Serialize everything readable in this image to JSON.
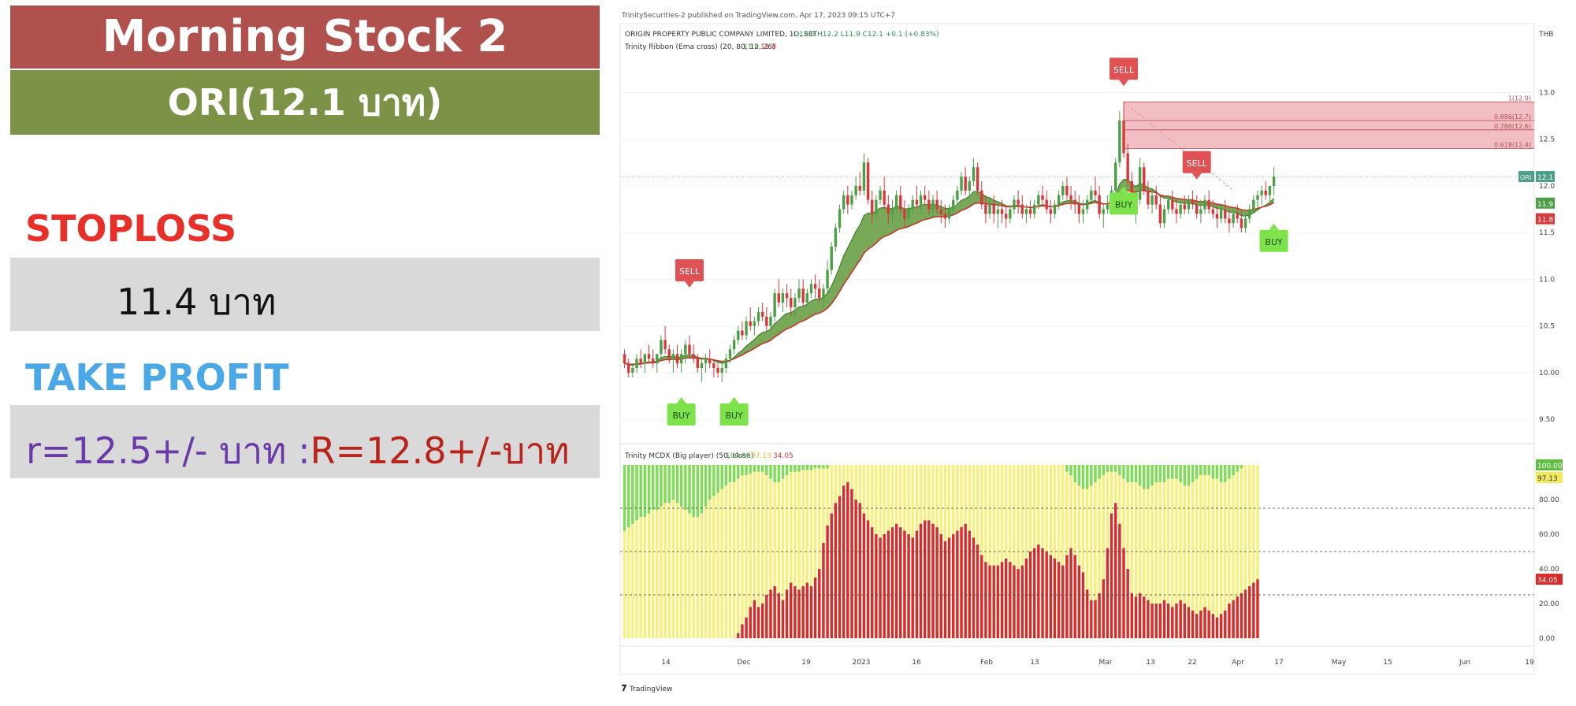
{
  "header": {
    "title": "Morning Stock 2",
    "ticker": "ORI(12.1 บาท)"
  },
  "stoploss": {
    "label": "STOPLOSS",
    "value": "11.4 บาท"
  },
  "take_profit": {
    "label": "TAKE PROFIT",
    "support": "r=12.5+/- บาท :",
    "resistance": "R=12.8+/-บาท"
  },
  "colors": {
    "title_bg": "#b0514d",
    "ticker_bg": "#7c9347",
    "stoploss": "#e8302a",
    "take_profit": "#4aa8e6",
    "support_text": "#6a3aa8",
    "resistance_text": "#b8241c",
    "bull": "#4c9e47",
    "bear": "#d9383a",
    "ribbon": "#5f9a3c",
    "buy_badge": "#7ee24a",
    "sell_badge": "#e05154"
  },
  "chart_data": {
    "type": "candlestick",
    "published": "TrinitySecurities-2 published on TradingView.com, Apr 17, 2023 09:15 UTC+7",
    "symbol_line": "ORIGIN PROPERTY PUBLIC COMPANY LIMITED, 1D, SET",
    "ohlc": "O12.0 H12.2 L11.9 C12.1 +0.1 (+0.83%)",
    "indicator_line": "Trinity Ribbon (Ema cross) (20, 80, 12, 26)",
    "indicator_values": [
      "11.9",
      "11.8"
    ],
    "currency": "THB",
    "price_ticks": [
      "13.0",
      "12.5",
      "12.0",
      "11.5",
      "11.0",
      "10.5",
      "10.00",
      "9.50"
    ],
    "ylim": [
      9.35,
      13.4
    ],
    "last_price_label": "ORI",
    "last_price": "12.1",
    "ema_fast_label": "11.9",
    "ema_slow_label": "11.8",
    "fib_levels": [
      {
        "label": "1(12.9)",
        "value": 12.9
      },
      {
        "label": "0.886(12.7)",
        "value": 12.7
      },
      {
        "label": "0.786(12.6)",
        "value": 12.6
      },
      {
        "label": "0.618(12.4)",
        "value": 12.4
      }
    ],
    "x_ticks": [
      "14",
      "Dec",
      "19",
      "2023",
      "16",
      "Feb",
      "13",
      "Mar",
      "13",
      "22",
      "Apr",
      "17",
      "May",
      "15",
      "Jun",
      "19"
    ],
    "signals": [
      {
        "type": "SELL",
        "index": 16
      },
      {
        "type": "BUY",
        "index": 14
      },
      {
        "type": "BUY",
        "index": 27
      },
      {
        "type": "SELL",
        "index": 123
      },
      {
        "type": "BUY",
        "index": 123
      },
      {
        "type": "SELL",
        "index": 141
      },
      {
        "type": "BUY",
        "index": 160
      }
    ],
    "candles": [
      [
        10.2,
        10.25,
        10.05,
        10.1
      ],
      [
        10.1,
        10.15,
        9.95,
        10.0
      ],
      [
        10.0,
        10.1,
        9.95,
        10.05
      ],
      [
        10.05,
        10.2,
        10.0,
        10.15
      ],
      [
        10.15,
        10.25,
        10.05,
        10.1
      ],
      [
        10.1,
        10.2,
        10.0,
        10.2
      ],
      [
        10.2,
        10.3,
        10.1,
        10.15
      ],
      [
        10.15,
        10.25,
        10.05,
        10.1
      ],
      [
        10.1,
        10.2,
        10.0,
        10.2
      ],
      [
        10.2,
        10.4,
        10.15,
        10.35
      ],
      [
        10.35,
        10.5,
        10.2,
        10.25
      ],
      [
        10.25,
        10.3,
        10.1,
        10.15
      ],
      [
        10.15,
        10.25,
        10.0,
        10.2
      ],
      [
        10.2,
        10.3,
        10.05,
        10.1
      ],
      [
        10.1,
        10.25,
        10.0,
        10.2
      ],
      [
        10.2,
        10.35,
        10.1,
        10.3
      ],
      [
        10.3,
        10.4,
        10.15,
        10.2
      ],
      [
        10.2,
        10.3,
        10.1,
        10.15
      ],
      [
        10.15,
        10.2,
        10.0,
        10.05
      ],
      [
        10.05,
        10.15,
        9.9,
        10.1
      ],
      [
        10.1,
        10.2,
        10.0,
        10.15
      ],
      [
        10.15,
        10.25,
        10.05,
        10.1
      ],
      [
        10.1,
        10.15,
        9.95,
        10.05
      ],
      [
        10.05,
        10.1,
        9.95,
        10.0
      ],
      [
        10.0,
        10.1,
        9.9,
        10.05
      ],
      [
        10.05,
        10.2,
        10.0,
        10.15
      ],
      [
        10.15,
        10.3,
        10.1,
        10.25
      ],
      [
        10.25,
        10.4,
        10.2,
        10.35
      ],
      [
        10.35,
        10.5,
        10.3,
        10.45
      ],
      [
        10.45,
        10.55,
        10.35,
        10.4
      ],
      [
        10.4,
        10.6,
        10.35,
        10.55
      ],
      [
        10.55,
        10.7,
        10.45,
        10.5
      ],
      [
        10.5,
        10.6,
        10.4,
        10.55
      ],
      [
        10.55,
        10.7,
        10.5,
        10.65
      ],
      [
        10.65,
        10.75,
        10.55,
        10.6
      ],
      [
        10.6,
        10.7,
        10.45,
        10.5
      ],
      [
        10.5,
        10.65,
        10.45,
        10.6
      ],
      [
        10.6,
        10.9,
        10.55,
        10.85
      ],
      [
        10.85,
        11.0,
        10.7,
        10.75
      ],
      [
        10.75,
        10.9,
        10.65,
        10.85
      ],
      [
        10.85,
        10.95,
        10.7,
        10.8
      ],
      [
        10.8,
        10.9,
        10.6,
        10.7
      ],
      [
        10.7,
        10.85,
        10.6,
        10.8
      ],
      [
        10.8,
        11.0,
        10.75,
        10.9
      ],
      [
        10.9,
        11.0,
        10.7,
        10.75
      ],
      [
        10.75,
        10.9,
        10.7,
        10.85
      ],
      [
        10.85,
        11.0,
        10.8,
        10.95
      ],
      [
        10.95,
        11.05,
        10.8,
        10.9
      ],
      [
        10.9,
        11.0,
        10.75,
        10.8
      ],
      [
        10.8,
        10.95,
        10.7,
        10.9
      ],
      [
        10.9,
        11.2,
        10.85,
        11.1
      ],
      [
        11.1,
        11.4,
        11.05,
        11.35
      ],
      [
        11.35,
        11.6,
        11.3,
        11.55
      ],
      [
        11.55,
        11.8,
        11.5,
        11.75
      ],
      [
        11.75,
        11.95,
        11.7,
        11.9
      ],
      [
        11.9,
        12.0,
        11.7,
        11.8
      ],
      [
        11.8,
        11.95,
        11.75,
        11.9
      ],
      [
        11.9,
        12.1,
        11.85,
        12.0
      ],
      [
        12.0,
        12.15,
        11.9,
        11.95
      ],
      [
        11.95,
        12.35,
        11.9,
        12.25
      ],
      [
        12.25,
        12.3,
        11.8,
        11.85
      ],
      [
        11.85,
        11.95,
        11.6,
        11.7
      ],
      [
        11.7,
        11.9,
        11.65,
        11.85
      ],
      [
        11.85,
        12.0,
        11.8,
        11.95
      ],
      [
        11.95,
        12.1,
        11.75,
        11.8
      ],
      [
        11.8,
        11.9,
        11.6,
        11.7
      ],
      [
        11.7,
        11.85,
        11.6,
        11.75
      ],
      [
        11.75,
        11.95,
        11.7,
        11.9
      ],
      [
        11.9,
        12.0,
        11.7,
        11.75
      ],
      [
        11.75,
        11.85,
        11.55,
        11.65
      ],
      [
        11.65,
        11.8,
        11.6,
        11.75
      ],
      [
        11.75,
        11.9,
        11.7,
        11.85
      ],
      [
        11.85,
        12.0,
        11.75,
        11.8
      ],
      [
        11.8,
        11.95,
        11.7,
        11.9
      ],
      [
        11.9,
        12.0,
        11.8,
        11.85
      ],
      [
        11.85,
        11.95,
        11.7,
        11.75
      ],
      [
        11.75,
        11.9,
        11.65,
        11.85
      ],
      [
        11.85,
        11.95,
        11.7,
        11.75
      ],
      [
        11.75,
        11.85,
        11.6,
        11.7
      ],
      [
        11.7,
        11.8,
        11.55,
        11.65
      ],
      [
        11.65,
        11.8,
        11.6,
        11.75
      ],
      [
        11.75,
        11.9,
        11.7,
        11.85
      ],
      [
        11.85,
        12.0,
        11.8,
        11.95
      ],
      [
        11.95,
        12.15,
        11.9,
        12.1
      ],
      [
        12.1,
        12.2,
        11.9,
        11.95
      ],
      [
        11.95,
        12.1,
        11.85,
        12.05
      ],
      [
        12.05,
        12.3,
        12.0,
        12.2
      ],
      [
        12.2,
        12.25,
        11.9,
        11.95
      ],
      [
        11.95,
        12.05,
        11.75,
        11.8
      ],
      [
        11.8,
        11.9,
        11.6,
        11.7
      ],
      [
        11.7,
        11.85,
        11.65,
        11.8
      ],
      [
        11.8,
        11.9,
        11.6,
        11.7
      ],
      [
        11.7,
        11.8,
        11.55,
        11.75
      ],
      [
        11.75,
        11.85,
        11.6,
        11.7
      ],
      [
        11.7,
        11.8,
        11.55,
        11.65
      ],
      [
        11.65,
        11.8,
        11.6,
        11.75
      ],
      [
        11.75,
        11.9,
        11.7,
        11.85
      ],
      [
        11.85,
        11.95,
        11.7,
        11.8
      ],
      [
        11.8,
        11.9,
        11.65,
        11.7
      ],
      [
        11.7,
        11.8,
        11.6,
        11.75
      ],
      [
        11.75,
        11.85,
        11.65,
        11.7
      ],
      [
        11.7,
        11.85,
        11.65,
        11.8
      ],
      [
        11.8,
        11.95,
        11.75,
        11.9
      ],
      [
        11.9,
        12.0,
        11.8,
        11.85
      ],
      [
        11.85,
        11.95,
        11.7,
        11.75
      ],
      [
        11.75,
        11.85,
        11.6,
        11.7
      ],
      [
        11.7,
        11.85,
        11.65,
        11.8
      ],
      [
        11.8,
        11.95,
        11.75,
        11.9
      ],
      [
        11.9,
        12.05,
        11.85,
        12.0
      ],
      [
        12.0,
        12.1,
        11.85,
        11.9
      ],
      [
        11.9,
        12.0,
        11.75,
        11.85
      ],
      [
        11.85,
        11.95,
        11.7,
        11.8
      ],
      [
        11.8,
        11.9,
        11.6,
        11.7
      ],
      [
        11.7,
        11.85,
        11.6,
        11.75
      ],
      [
        11.75,
        11.9,
        11.7,
        11.85
      ],
      [
        11.85,
        12.0,
        11.8,
        11.95
      ],
      [
        11.95,
        12.1,
        11.85,
        11.9
      ],
      [
        11.9,
        12.0,
        11.65,
        11.7
      ],
      [
        11.7,
        11.8,
        11.55,
        11.75
      ],
      [
        11.75,
        11.9,
        11.7,
        11.8
      ],
      [
        11.8,
        12.0,
        11.75,
        11.95
      ],
      [
        11.95,
        12.3,
        11.9,
        12.25
      ],
      [
        12.25,
        12.8,
        12.2,
        12.7
      ],
      [
        12.7,
        12.9,
        12.3,
        12.35
      ],
      [
        12.35,
        12.45,
        12.0,
        12.05
      ],
      [
        12.05,
        12.15,
        11.7,
        11.75
      ],
      [
        11.75,
        11.9,
        11.6,
        11.85
      ],
      [
        11.85,
        12.3,
        11.8,
        12.2
      ],
      [
        12.2,
        12.25,
        11.9,
        11.95
      ],
      [
        11.95,
        12.05,
        11.75,
        11.8
      ],
      [
        11.8,
        11.95,
        11.7,
        11.9
      ],
      [
        11.9,
        12.0,
        11.75,
        11.8
      ],
      [
        11.8,
        11.9,
        11.55,
        11.6
      ],
      [
        11.6,
        11.8,
        11.55,
        11.75
      ],
      [
        11.75,
        11.9,
        11.7,
        11.85
      ],
      [
        11.85,
        11.95,
        11.7,
        11.75
      ],
      [
        11.75,
        11.85,
        11.6,
        11.7
      ],
      [
        11.7,
        11.85,
        11.65,
        11.8
      ],
      [
        11.8,
        11.9,
        11.7,
        11.75
      ],
      [
        11.75,
        11.9,
        11.7,
        11.85
      ],
      [
        11.85,
        11.95,
        11.75,
        11.8
      ],
      [
        11.8,
        11.9,
        11.65,
        11.7
      ],
      [
        11.7,
        11.85,
        11.6,
        11.75
      ],
      [
        11.75,
        11.9,
        11.7,
        11.85
      ],
      [
        11.85,
        11.95,
        11.7,
        11.75
      ],
      [
        11.75,
        11.85,
        11.65,
        11.7
      ],
      [
        11.7,
        11.8,
        11.55,
        11.65
      ],
      [
        11.65,
        11.8,
        11.6,
        11.75
      ],
      [
        11.75,
        11.85,
        11.6,
        11.65
      ],
      [
        11.65,
        11.75,
        11.5,
        11.6
      ],
      [
        11.6,
        11.75,
        11.55,
        11.7
      ],
      [
        11.7,
        11.8,
        11.6,
        11.65
      ],
      [
        11.65,
        11.75,
        11.5,
        11.55
      ],
      [
        11.55,
        11.7,
        11.5,
        11.65
      ],
      [
        11.65,
        11.8,
        11.6,
        11.75
      ],
      [
        11.75,
        11.9,
        11.7,
        11.85
      ],
      [
        11.85,
        11.95,
        11.75,
        11.9
      ],
      [
        11.9,
        12.0,
        11.8,
        11.95
      ],
      [
        11.95,
        12.05,
        11.85,
        11.9
      ],
      [
        11.9,
        12.0,
        11.8,
        12.0
      ],
      [
        12.0,
        12.2,
        11.9,
        12.1
      ]
    ],
    "mcdx": {
      "label": "Trinity MCDX (Big player) (50, close)",
      "values": [
        "100.00",
        "97.13",
        "34.05"
      ],
      "axis_ticks": [
        "100.00",
        "80.00",
        "60.00",
        "40.00",
        "20.00",
        "0.00"
      ],
      "ylim": [
        0,
        100
      ],
      "dashed_levels": [
        75,
        50,
        25
      ],
      "red": [
        0,
        0,
        0,
        0,
        0,
        0,
        0,
        0,
        0,
        0,
        0,
        0,
        0,
        0,
        0,
        0,
        0,
        0,
        0,
        0,
        0,
        0,
        0,
        0,
        0,
        0,
        0,
        0,
        3,
        8,
        12,
        18,
        22,
        18,
        20,
        25,
        28,
        30,
        26,
        22,
        28,
        32,
        30,
        28,
        30,
        32,
        30,
        35,
        40,
        55,
        65,
        72,
        78,
        82,
        88,
        90,
        86,
        80,
        78,
        72,
        68,
        64,
        60,
        58,
        60,
        62,
        64,
        66,
        64,
        62,
        60,
        58,
        62,
        66,
        68,
        68,
        66,
        64,
        60,
        56,
        58,
        60,
        62,
        64,
        66,
        62,
        58,
        54,
        48,
        44,
        42,
        42,
        42,
        44,
        46,
        44,
        42,
        40,
        42,
        46,
        50,
        52,
        54,
        52,
        50,
        48,
        46,
        44,
        42,
        48,
        52,
        48,
        42,
        38,
        28,
        22,
        22,
        26,
        34,
        52,
        72,
        78,
        66,
        52,
        40,
        26,
        24,
        26,
        24,
        22,
        20,
        20,
        20,
        22,
        20,
        18,
        20,
        22,
        20,
        18,
        16,
        14,
        16,
        18,
        16,
        14,
        12,
        14,
        16,
        20,
        22,
        24,
        26,
        28,
        30,
        32,
        34
      ],
      "green": [
        38,
        36,
        34,
        32,
        30,
        30,
        28,
        26,
        26,
        24,
        22,
        22,
        20,
        22,
        24,
        26,
        28,
        30,
        30,
        28,
        24,
        20,
        18,
        16,
        14,
        12,
        10,
        10,
        8,
        6,
        6,
        5,
        4,
        4,
        4,
        6,
        8,
        10,
        10,
        8,
        6,
        4,
        4,
        4,
        3,
        3,
        3,
        2,
        2,
        2,
        2,
        0,
        0,
        0,
        0,
        0,
        0,
        0,
        0,
        0,
        0,
        0,
        0,
        0,
        0,
        0,
        0,
        0,
        0,
        0,
        0,
        0,
        0,
        0,
        0,
        0,
        0,
        0,
        0,
        0,
        0,
        0,
        0,
        0,
        0,
        0,
        0,
        0,
        0,
        0,
        0,
        0,
        0,
        0,
        0,
        0,
        0,
        0,
        0,
        0,
        0,
        0,
        0,
        0,
        0,
        0,
        0,
        0,
        0,
        4,
        6,
        10,
        12,
        14,
        14,
        12,
        10,
        8,
        6,
        4,
        4,
        4,
        6,
        8,
        10,
        10,
        10,
        12,
        14,
        14,
        12,
        10,
        10,
        10,
        8,
        8,
        8,
        10,
        12,
        12,
        10,
        8,
        6,
        6,
        6,
        8,
        8,
        10,
        10,
        8,
        6,
        4,
        2,
        0,
        0
      ]
    }
  }
}
